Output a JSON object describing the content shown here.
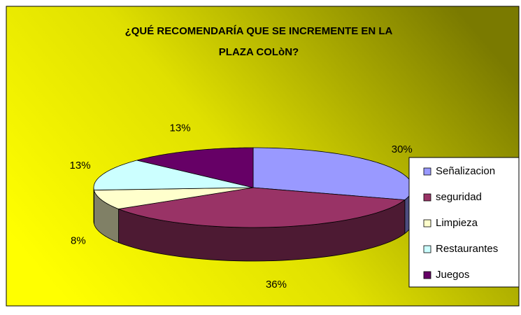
{
  "chart_data": {
    "type": "pie3d",
    "title": "¿QUÉ RECOMENDARÍA QUE SE INCREMENTE EN LA PLAZA COLòN?",
    "categories": [
      "Señalizacion",
      "seguridad",
      "Limpieza",
      "Restaurantes",
      "Juegos"
    ],
    "values": [
      30,
      36,
      8,
      13,
      13
    ],
    "value_labels": [
      "30%",
      "36%",
      "8%",
      "13%",
      "13%"
    ],
    "colors": [
      "#9999ff",
      "#993366",
      "#ffffcc",
      "#ccffff",
      "#660066"
    ],
    "legend": "right"
  }
}
